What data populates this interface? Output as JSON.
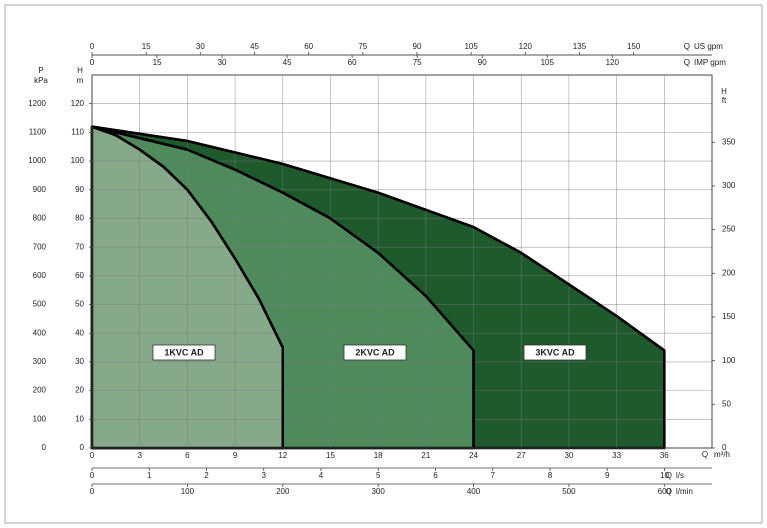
{
  "chart_data": {
    "type": "area",
    "xlim": [
      0,
      39
    ],
    "xticks": [
      0,
      3,
      6,
      9,
      12,
      15,
      18,
      21,
      24,
      27,
      30,
      33,
      36
    ],
    "x_label": [
      "Q",
      "m³/h"
    ],
    "ylim": [
      0,
      130
    ],
    "yticks": [
      0,
      10,
      20,
      30,
      40,
      50,
      60,
      70,
      80,
      90,
      100,
      110,
      120
    ],
    "y_label": [
      "H",
      "m"
    ],
    "grid": true,
    "other_axes": [
      {
        "side": "left",
        "label": [
          "P",
          "kPa"
        ],
        "lim": [
          0,
          1300
        ],
        "ticks": [
          0,
          100,
          200,
          300,
          400,
          500,
          600,
          700,
          800,
          900,
          1000,
          1100,
          1200
        ]
      },
      {
        "side": "right",
        "label": [
          "H",
          "ft"
        ],
        "lim": [
          0,
          427
        ],
        "ticks": [
          0,
          50,
          100,
          150,
          200,
          250,
          300,
          350
        ]
      },
      {
        "side": "top",
        "label": [
          "Q",
          "US gpm"
        ],
        "lim": [
          0,
          171.7
        ],
        "ticks": [
          0,
          15,
          30,
          45,
          60,
          75,
          90,
          105,
          120,
          135,
          150
        ]
      },
      {
        "side": "top",
        "label": [
          "Q",
          "IMP gpm"
        ],
        "lim": [
          0,
          143
        ],
        "ticks": [
          0,
          15,
          30,
          45,
          60,
          75,
          90,
          105,
          120
        ]
      },
      {
        "side": "bottom",
        "label": [
          "Q",
          "l/s"
        ],
        "lim": [
          0,
          10.83
        ],
        "ticks": [
          0,
          1,
          2,
          3,
          4,
          5,
          6,
          7,
          8,
          9,
          10
        ]
      },
      {
        "side": "bottom",
        "label": [
          "Q",
          "l/min"
        ],
        "lim": [
          0,
          650
        ],
        "ticks": [
          0,
          100,
          200,
          300,
          400,
          500,
          600
        ]
      }
    ],
    "series": [
      {
        "name": "1KVC AD",
        "color": "#86a98a",
        "x": [
          0,
          1.5,
          3,
          4.5,
          6,
          7.5,
          9,
          10.5,
          12
        ],
        "values": [
          112,
          109,
          104,
          98,
          90,
          79,
          66,
          52,
          35
        ]
      },
      {
        "name": "2KVC AD",
        "color": "#4f8a5c",
        "x": [
          0,
          3,
          6,
          9,
          12,
          15,
          18,
          21,
          24
        ],
        "values": [
          112,
          108,
          104,
          97,
          89,
          80,
          68,
          53,
          34
        ]
      },
      {
        "name": "3KVC AD",
        "color": "#1f5a2d",
        "x": [
          0,
          6,
          12,
          18,
          24,
          27,
          30,
          33,
          36
        ],
        "values": [
          112,
          107,
          99,
          89,
          77,
          68,
          57,
          46,
          34
        ]
      }
    ]
  }
}
